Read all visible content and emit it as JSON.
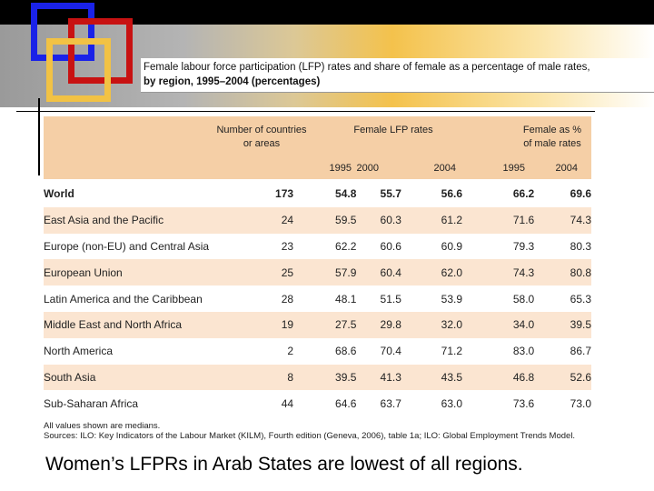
{
  "table": {
    "title_line1": "Female labour force participation (LFP) rates and share of female as a percentage of male rates,",
    "title_line2": "by region, 1995–2004 (percentages)",
    "header": {
      "countries": "Number of countries",
      "countries2": "or areas",
      "lfp": "Female LFP rates",
      "pct": "Female as %",
      "pct2": "of male rates",
      "years_lfp": [
        "1995",
        "2000",
        "2004"
      ],
      "years_pct": [
        "1995",
        "2004"
      ]
    },
    "rows": [
      {
        "region": "World",
        "countries": "173",
        "lfp1995": "54.8",
        "lfp2000": "55.7",
        "lfp2004": "56.6",
        "pct1995": "66.2",
        "pct2004": "69.6"
      },
      {
        "region": "East Asia and the Pacific",
        "countries": "24",
        "lfp1995": "59.5",
        "lfp2000": "60.3",
        "lfp2004": "61.2",
        "pct1995": "71.6",
        "pct2004": "74.3"
      },
      {
        "region": "Europe (non-EU) and Central Asia",
        "countries": "23",
        "lfp1995": "62.2",
        "lfp2000": "60.6",
        "lfp2004": "60.9",
        "pct1995": "79.3",
        "pct2004": "80.3"
      },
      {
        "region": "European Union",
        "countries": "25",
        "lfp1995": "57.9",
        "lfp2000": "60.4",
        "lfp2004": "62.0",
        "pct1995": "74.3",
        "pct2004": "80.8"
      },
      {
        "region": "Latin America and the Caribbean",
        "countries": "28",
        "lfp1995": "48.1",
        "lfp2000": "51.5",
        "lfp2004": "53.9",
        "pct1995": "58.0",
        "pct2004": "65.3"
      },
      {
        "region": "Middle East and North Africa",
        "countries": "19",
        "lfp1995": "27.5",
        "lfp2000": "29.8",
        "lfp2004": "32.0",
        "pct1995": "34.0",
        "pct2004": "39.5"
      },
      {
        "region": "North America",
        "countries": "2",
        "lfp1995": "68.6",
        "lfp2000": "70.4",
        "lfp2004": "71.2",
        "pct1995": "83.0",
        "pct2004": "86.7"
      },
      {
        "region": "South Asia",
        "countries": "8",
        "lfp1995": "39.5",
        "lfp2000": "41.3",
        "lfp2004": "43.5",
        "pct1995": "46.8",
        "pct2004": "52.6"
      },
      {
        "region": "Sub-Saharan Africa",
        "countries": "44",
        "lfp1995": "64.6",
        "lfp2000": "63.7",
        "lfp2004": "63.0",
        "pct1995": "73.6",
        "pct2004": "73.0"
      }
    ],
    "note1": "All values shown are medians.",
    "note2": "Sources: ILO: Key Indicators of the Labour Market (KILM), Fourth edition (Geneva, 2006), table 1a; ILO: Global Employment Trends Model."
  },
  "caption": "Women’s LFPRs in Arab States are lowest of all regions.",
  "colors": {
    "blue": "#1a22e8",
    "red": "#c81212",
    "yellow": "#f2c244",
    "header_bg": "#f5cfa6",
    "row_shade": "#fbe5d1"
  }
}
